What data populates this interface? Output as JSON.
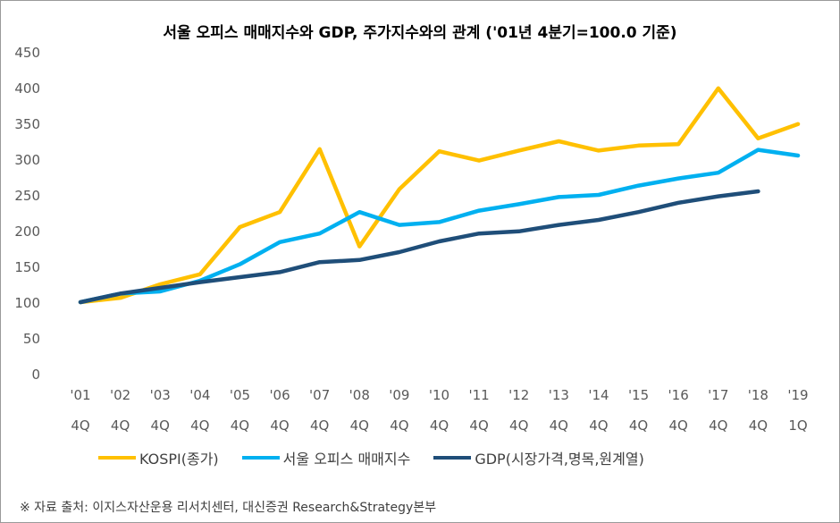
{
  "chart_data": {
    "type": "line",
    "title": "서울 오피스 매매지수와 GDP, 주가지수와의 관계 ('01년 4분기=100.0 기준)",
    "categories": [
      [
        "'01",
        "4Q"
      ],
      [
        "'02",
        "4Q"
      ],
      [
        "'03",
        "4Q"
      ],
      [
        "'04",
        "4Q"
      ],
      [
        "'05",
        "4Q"
      ],
      [
        "'06",
        "4Q"
      ],
      [
        "'07",
        "4Q"
      ],
      [
        "'08",
        "4Q"
      ],
      [
        "'09",
        "4Q"
      ],
      [
        "'10",
        "4Q"
      ],
      [
        "'11",
        "4Q"
      ],
      [
        "'12",
        "4Q"
      ],
      [
        "'13",
        "4Q"
      ],
      [
        "'14",
        "4Q"
      ],
      [
        "'15",
        "4Q"
      ],
      [
        "'16",
        "4Q"
      ],
      [
        "'17",
        "4Q"
      ],
      [
        "'18",
        "4Q"
      ],
      [
        "'19",
        "1Q"
      ]
    ],
    "ylim": [
      0,
      450
    ],
    "yticks": [
      0,
      50,
      100,
      150,
      200,
      250,
      300,
      350,
      400,
      450
    ],
    "grid": false,
    "legend_position": "bottom",
    "series": [
      {
        "name": "KOSPI(종가)",
        "color": "#FFC000",
        "values": [
          100,
          106,
          125,
          139,
          205,
          226,
          314,
          178,
          258,
          311,
          298,
          312,
          325,
          312,
          319,
          321,
          399,
          329,
          349
        ]
      },
      {
        "name": "서울 오피스 매매지수",
        "color": "#00B0F0",
        "values": [
          100,
          112,
          115,
          130,
          153,
          184,
          196,
          226,
          208,
          212,
          228,
          237,
          247,
          250,
          263,
          273,
          281,
          313,
          305
        ]
      },
      {
        "name": "GDP(시장가격,명목,원계열)",
        "color": "#1F4E79",
        "values": [
          100,
          112,
          120,
          128,
          135,
          142,
          156,
          159,
          170,
          185,
          196,
          199,
          208,
          215,
          226,
          239,
          248,
          255,
          null
        ]
      }
    ]
  },
  "source": "※ 자료 출처: 이지스자산운용 리서치센터, 대신증권 Research&Strategy본부"
}
